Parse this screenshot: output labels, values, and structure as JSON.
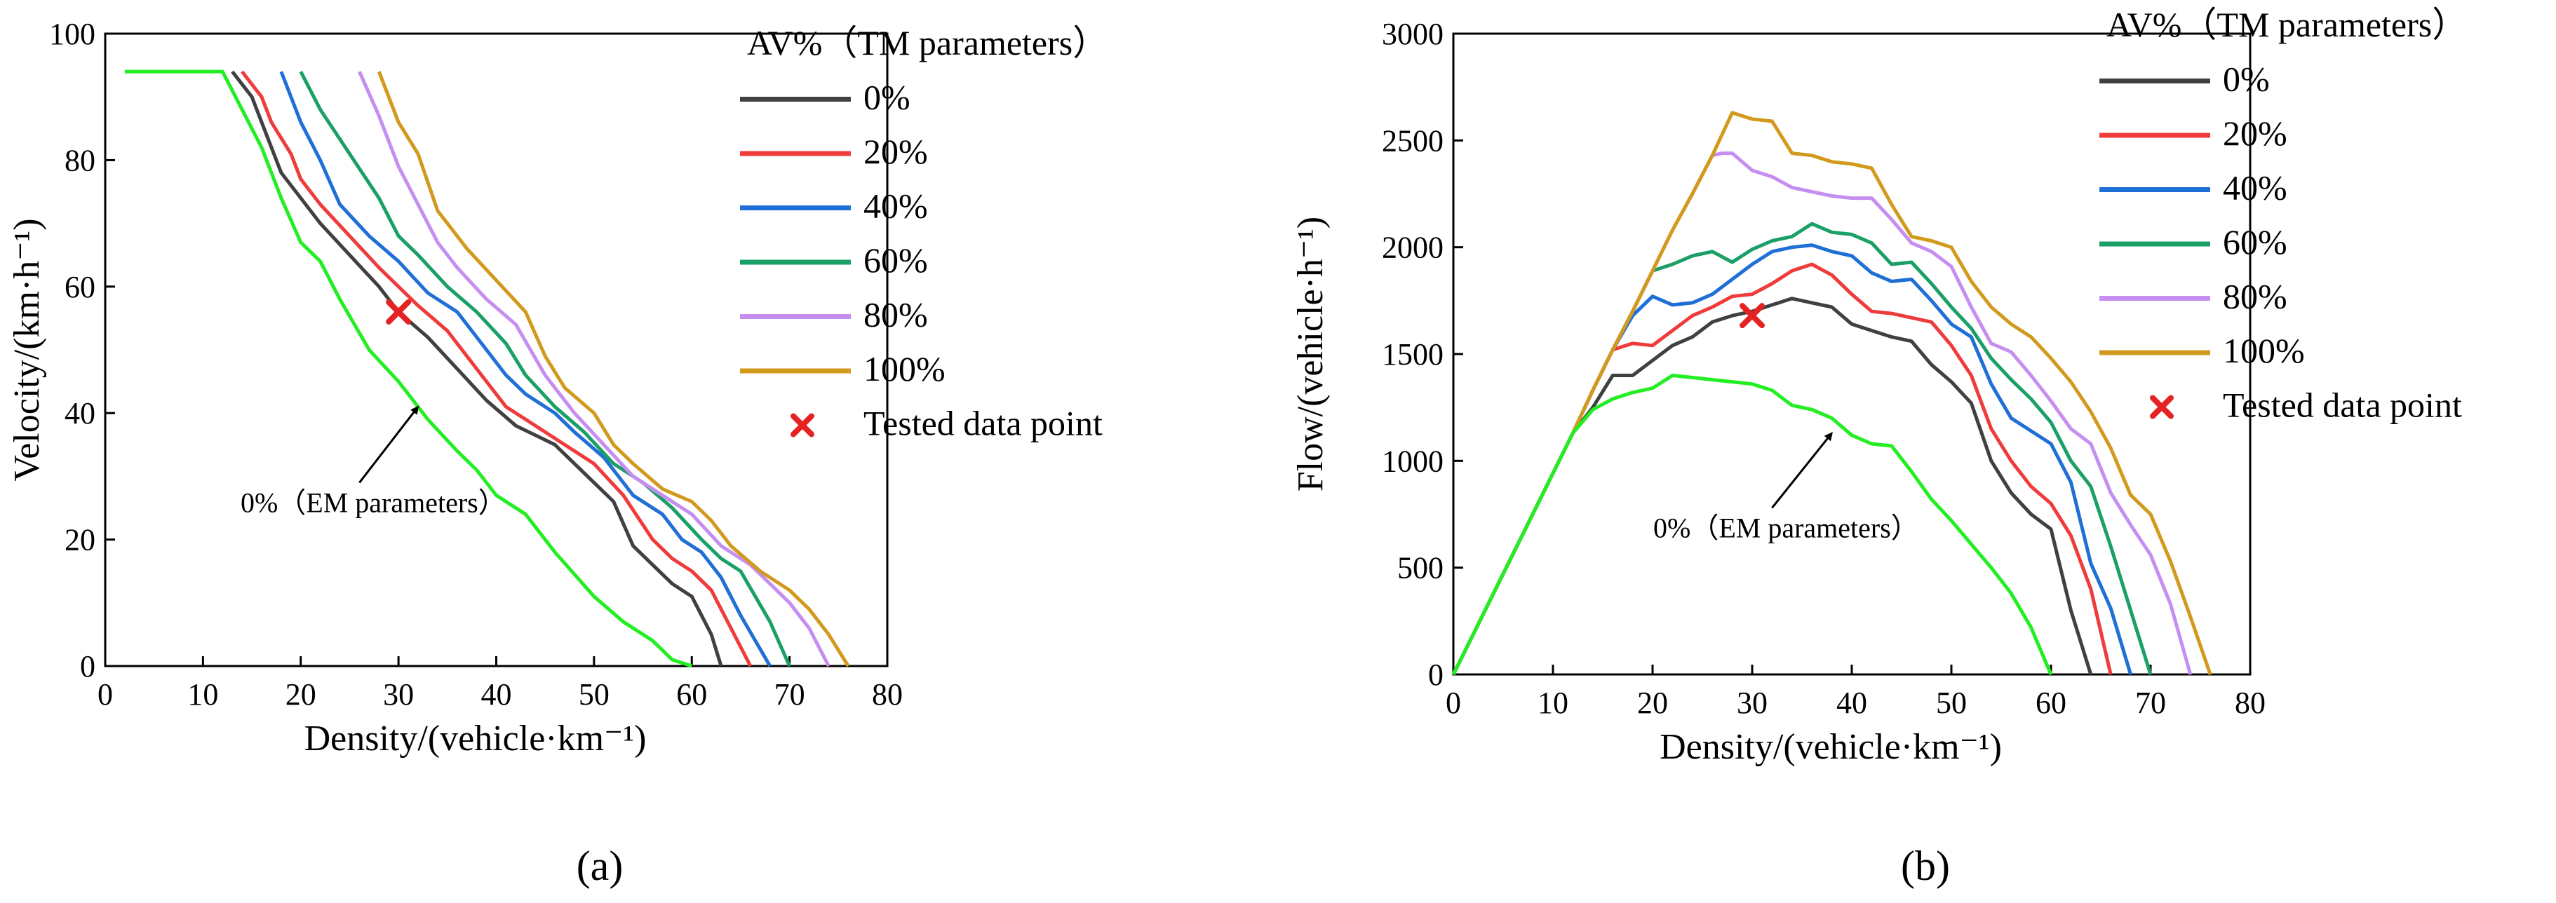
{
  "figure": {
    "panel_a_label": "(a)",
    "panel_b_label": "(b)"
  },
  "chart_data": [
    {
      "type": "line",
      "panel": "a",
      "title": "",
      "xlabel": "Density/(vehicle·km⁻¹)",
      "ylabel": "Velocity/(km·h⁻¹)",
      "xlim": [
        0,
        80
      ],
      "ylim": [
        0,
        100
      ],
      "xticks": [
        0,
        10,
        20,
        30,
        40,
        50,
        60,
        70,
        80
      ],
      "yticks": [
        0,
        20,
        40,
        60,
        80,
        100
      ],
      "grid": false,
      "legend_title": "AV%（TM parameters）",
      "legend_position": "top-right",
      "series": [
        {
          "name": "0%",
          "color": "#404040",
          "x": [
            13,
            15,
            16,
            18,
            20,
            22,
            25,
            28,
            30,
            33,
            36,
            39,
            42,
            46,
            50,
            52,
            54,
            56,
            58,
            60,
            62,
            63
          ],
          "y": [
            94,
            90,
            86,
            78,
            74,
            70,
            65,
            60,
            56,
            52,
            47,
            42,
            38,
            35,
            29,
            26,
            19,
            16,
            13,
            11,
            5,
            0
          ]
        },
        {
          "name": "20%",
          "color": "#ef3b3b",
          "x": [
            14,
            16,
            17,
            19,
            20,
            22,
            25,
            28,
            30,
            32,
            35,
            38,
            41,
            44,
            47,
            50,
            53,
            56,
            58,
            60,
            62,
            64,
            66
          ],
          "y": [
            94,
            90,
            86,
            81,
            77,
            73,
            68,
            63,
            60,
            57,
            53,
            47,
            41,
            38,
            35,
            32,
            27,
            20,
            17,
            15,
            12,
            6,
            0
          ]
        },
        {
          "name": "40%",
          "color": "#1f6fd6",
          "x": [
            18,
            20,
            22,
            24,
            27,
            30,
            33,
            36,
            39,
            41,
            43,
            46,
            48,
            51,
            54,
            57,
            59,
            61,
            63,
            65,
            68
          ],
          "y": [
            94,
            86,
            80,
            73,
            68,
            64,
            59,
            56,
            50,
            46,
            43,
            40,
            37,
            33,
            27,
            24,
            20,
            18,
            14,
            8,
            0
          ]
        },
        {
          "name": "60%",
          "color": "#1aa067",
          "x": [
            20,
            22,
            25,
            28,
            30,
            32,
            35,
            38,
            41,
            43,
            46,
            49,
            52,
            55,
            58,
            61,
            63,
            65,
            68,
            70
          ],
          "y": [
            94,
            88,
            81,
            74,
            68,
            65,
            60,
            56,
            51,
            46,
            41,
            37,
            32,
            29,
            25,
            20,
            17,
            15,
            7,
            0
          ]
        },
        {
          "name": "80%",
          "color": "#c68ef0",
          "x": [
            26,
            28,
            30,
            32,
            34,
            36,
            39,
            42,
            45,
            48,
            51,
            54,
            57,
            60,
            63,
            66,
            68,
            70,
            72,
            74
          ],
          "y": [
            94,
            87,
            79,
            73,
            67,
            63,
            58,
            54,
            46,
            40,
            35,
            30,
            27,
            24,
            19,
            16,
            13,
            10,
            6,
            0
          ]
        },
        {
          "name": "100%",
          "color": "#d29a1d",
          "x": [
            28,
            30,
            32,
            34,
            37,
            40,
            43,
            45,
            47,
            50,
            52,
            54,
            57,
            60,
            62,
            64,
            67,
            70,
            72,
            74,
            76
          ],
          "y": [
            94,
            86,
            81,
            72,
            66,
            61,
            56,
            49,
            44,
            40,
            35,
            32,
            28,
            26,
            23,
            19,
            15,
            12,
            9,
            5,
            0
          ]
        },
        {
          "name": "0% (EM parameters)",
          "color": "#22ee22",
          "x": [
            2,
            12,
            14,
            16,
            18,
            20,
            22,
            24,
            27,
            30,
            33,
            36,
            38,
            40,
            43,
            46,
            50,
            53,
            56,
            58,
            60
          ],
          "y": [
            94,
            94,
            88,
            82,
            74,
            67,
            64,
            58,
            50,
            45,
            39,
            34,
            31,
            27,
            24,
            18,
            11,
            7,
            4,
            1,
            0
          ]
        }
      ],
      "tested_point": {
        "label": "Tested data point",
        "x": 30,
        "y": 56,
        "color": "#e52222"
      },
      "annotation": {
        "text": "0%（EM parameters）",
        "arrow_from": [
          26,
          29
        ],
        "arrow_to": [
          32,
          41
        ]
      }
    },
    {
      "type": "line",
      "panel": "b",
      "title": "",
      "xlabel": "Density/(vehicle·km⁻¹)",
      "ylabel": "Flow/(vehicle·h⁻¹)",
      "xlim": [
        0,
        80
      ],
      "ylim": [
        0,
        3000
      ],
      "xticks": [
        0,
        10,
        20,
        30,
        40,
        50,
        60,
        70,
        80
      ],
      "yticks": [
        0,
        500,
        1000,
        1500,
        2000,
        2500,
        3000
      ],
      "grid": false,
      "legend_title": "AV%（TM parameters）",
      "legend_position": "top-right",
      "series": [
        {
          "name": "0%",
          "color": "#404040",
          "x": [
            0,
            12,
            14,
            16,
            18,
            20,
            22,
            24,
            26,
            28,
            30,
            32,
            34,
            36,
            38,
            40,
            42,
            44,
            46,
            48,
            50,
            52,
            54,
            56,
            58,
            60,
            62,
            63,
            64
          ],
          "y": [
            0,
            1130,
            1250,
            1400,
            1400,
            1470,
            1540,
            1580,
            1650,
            1680,
            1700,
            1730,
            1760,
            1740,
            1720,
            1640,
            1610,
            1580,
            1560,
            1450,
            1370,
            1270,
            1000,
            850,
            750,
            680,
            300,
            150,
            0
          ]
        },
        {
          "name": "20%",
          "color": "#ef3b3b",
          "x": [
            0,
            12,
            14,
            16,
            18,
            20,
            22,
            24,
            26,
            28,
            30,
            32,
            34,
            36,
            38,
            40,
            42,
            44,
            46,
            48,
            50,
            52,
            54,
            56,
            58,
            60,
            62,
            64,
            66
          ],
          "y": [
            0,
            1130,
            1330,
            1520,
            1550,
            1540,
            1610,
            1680,
            1720,
            1770,
            1780,
            1830,
            1890,
            1920,
            1870,
            1780,
            1700,
            1690,
            1670,
            1650,
            1540,
            1400,
            1150,
            1000,
            880,
            800,
            650,
            400,
            0
          ]
        },
        {
          "name": "40%",
          "color": "#1f6fd6",
          "x": [
            0,
            12,
            14,
            16,
            18,
            20,
            22,
            24,
            26,
            28,
            30,
            32,
            34,
            36,
            38,
            40,
            42,
            44,
            46,
            48,
            50,
            52,
            54,
            56,
            58,
            60,
            62,
            64,
            66,
            68
          ],
          "y": [
            0,
            1130,
            1330,
            1520,
            1680,
            1770,
            1730,
            1740,
            1780,
            1850,
            1920,
            1980,
            2000,
            2010,
            1980,
            1960,
            1880,
            1840,
            1850,
            1750,
            1640,
            1580,
            1360,
            1200,
            1140,
            1080,
            900,
            520,
            310,
            0
          ]
        },
        {
          "name": "60%",
          "color": "#1aa067",
          "x": [
            0,
            12,
            14,
            16,
            18,
            20,
            22,
            24,
            26,
            28,
            30,
            32,
            34,
            36,
            38,
            40,
            42,
            44,
            46,
            48,
            50,
            52,
            54,
            56,
            58,
            60,
            62,
            64,
            66,
            68,
            70
          ],
          "y": [
            0,
            1130,
            1330,
            1520,
            1700,
            1890,
            1920,
            1960,
            1980,
            1930,
            1990,
            2030,
            2050,
            2110,
            2070,
            2060,
            2020,
            1920,
            1930,
            1830,
            1720,
            1620,
            1480,
            1380,
            1290,
            1180,
            1000,
            880,
            600,
            300,
            0
          ]
        },
        {
          "name": "80%",
          "color": "#c68ef0",
          "x": [
            0,
            12,
            14,
            16,
            18,
            20,
            22,
            24,
            26,
            27,
            28,
            30,
            32,
            34,
            36,
            38,
            40,
            42,
            44,
            46,
            48,
            50,
            52,
            54,
            56,
            58,
            60,
            62,
            64,
            66,
            68,
            70,
            72,
            74
          ],
          "y": [
            0,
            1130,
            1330,
            1520,
            1700,
            1890,
            2080,
            2250,
            2430,
            2440,
            2440,
            2360,
            2330,
            2280,
            2260,
            2240,
            2230,
            2230,
            2130,
            2020,
            1980,
            1910,
            1720,
            1550,
            1510,
            1400,
            1280,
            1150,
            1080,
            850,
            700,
            560,
            330,
            0
          ]
        },
        {
          "name": "100%",
          "color": "#d29a1d",
          "x": [
            0,
            12,
            14,
            16,
            18,
            20,
            22,
            24,
            26,
            28,
            30,
            32,
            34,
            36,
            38,
            40,
            42,
            44,
            46,
            48,
            50,
            52,
            54,
            56,
            58,
            60,
            62,
            64,
            66,
            68,
            70,
            72,
            74,
            76
          ],
          "y": [
            0,
            1130,
            1330,
            1520,
            1700,
            1890,
            2080,
            2250,
            2430,
            2630,
            2600,
            2590,
            2440,
            2430,
            2400,
            2390,
            2370,
            2200,
            2050,
            2030,
            2000,
            1840,
            1720,
            1640,
            1580,
            1480,
            1370,
            1230,
            1060,
            840,
            750,
            530,
            270,
            0
          ]
        },
        {
          "name": "0% (EM parameters)",
          "color": "#22ee22",
          "x": [
            0,
            12,
            14,
            16,
            18,
            20,
            22,
            24,
            26,
            28,
            30,
            32,
            34,
            36,
            38,
            40,
            42,
            44,
            46,
            48,
            50,
            52,
            54,
            56,
            58,
            60
          ],
          "y": [
            0,
            1130,
            1240,
            1290,
            1320,
            1340,
            1400,
            1390,
            1380,
            1370,
            1360,
            1330,
            1260,
            1240,
            1200,
            1120,
            1080,
            1070,
            950,
            820,
            720,
            610,
            500,
            380,
            220,
            0
          ]
        }
      ],
      "tested_point": {
        "label": "Tested data point",
        "x": 30,
        "y": 1680,
        "color": "#e52222"
      },
      "annotation": {
        "text": "0%（EM parameters）",
        "arrow_from": [
          32,
          780
        ],
        "arrow_to": [
          38,
          1130
        ]
      }
    }
  ]
}
